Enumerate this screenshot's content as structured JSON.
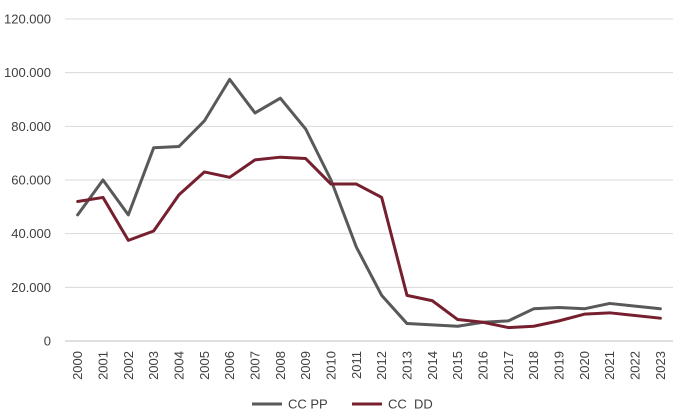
{
  "chart_data": {
    "type": "line",
    "title": "",
    "xlabel": "",
    "ylabel": "",
    "ylim": [
      0,
      120000
    ],
    "y_ticks": [
      0,
      20000,
      40000,
      60000,
      80000,
      100000,
      120000
    ],
    "y_tick_labels": [
      "0",
      "20.000",
      "40.000",
      "60.000",
      "80.000",
      "100.000",
      "120.000"
    ],
    "grid": true,
    "legend_position": "bottom",
    "categories": [
      "2000",
      "2001",
      "2002",
      "2003",
      "2004",
      "2005",
      "2006",
      "2007",
      "2008",
      "2009",
      "2010",
      "2011",
      "2012",
      "2013",
      "2014",
      "2015",
      "2016",
      "2017",
      "2018",
      "2019",
      "2020",
      "2021",
      "2022",
      "2023"
    ],
    "series": [
      {
        "name": "CC PP",
        "color": "#595959",
        "values": [
          47000,
          60000,
          47000,
          72000,
          72500,
          82000,
          97500,
          85000,
          90500,
          79000,
          60000,
          35000,
          17000,
          6500,
          6000,
          5500,
          7000,
          7500,
          12000,
          12500,
          12000,
          14000,
          13000,
          12000
        ]
      },
      {
        "name": "CC  DD",
        "color": "#76202f",
        "values": [
          52000,
          53500,
          37500,
          41000,
          54500,
          63000,
          61000,
          67500,
          68500,
          68000,
          58500,
          58500,
          53500,
          17000,
          15000,
          8000,
          7000,
          5000,
          5500,
          7500,
          10000,
          10500,
          9500,
          8500
        ]
      }
    ]
  }
}
